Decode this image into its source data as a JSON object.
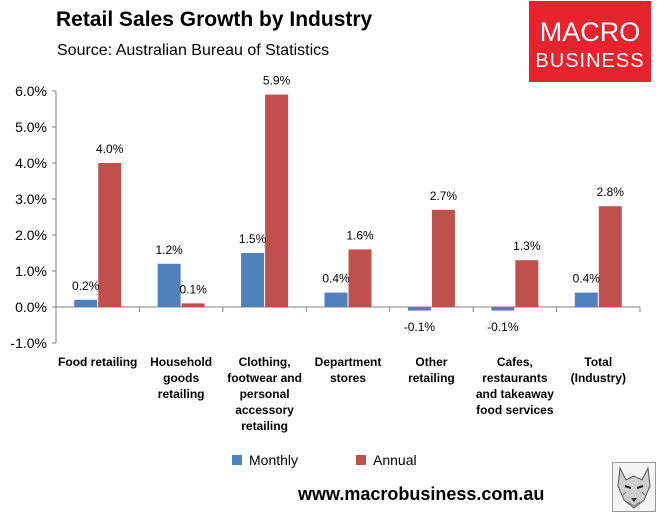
{
  "header": {
    "title": "Retail Sales Growth by Industry",
    "subtitle": "Source: Australian Bureau of Statistics"
  },
  "logo": {
    "line1": "MACRO",
    "line2": "BUSINESS",
    "bg_color": "#e8232e"
  },
  "footer": {
    "url": "www.macrobusiness.com.au"
  },
  "colors": {
    "monthly": "#4f81bd",
    "annual": "#c0504d"
  },
  "chart_data": {
    "type": "bar",
    "title": "Retail Sales Growth by Industry",
    "categories": [
      [
        "Food retailing"
      ],
      [
        "Household",
        "goods",
        "retailing"
      ],
      [
        "Clothing,",
        "footwear and",
        "personal",
        "accessory",
        "retailing"
      ],
      [
        "Department",
        "stores"
      ],
      [
        "Other",
        "retailing"
      ],
      [
        "Cafes,",
        "restaurants",
        "and takeaway",
        "food services"
      ],
      [
        "Total",
        "(Industry)"
      ]
    ],
    "series": [
      {
        "name": "Monthly",
        "values": [
          0.2,
          1.2,
          1.5,
          0.4,
          -0.1,
          -0.1,
          0.4
        ],
        "labels": [
          "0.2%",
          "1.2%",
          "1.5%",
          "0.4%",
          "-0.1%",
          "-0.1%",
          "0.4%"
        ]
      },
      {
        "name": "Annual",
        "values": [
          4.0,
          0.1,
          5.9,
          1.6,
          2.7,
          1.3,
          2.8
        ],
        "labels": [
          "4.0%",
          "0.1%",
          "5.9%",
          "1.6%",
          "2.7%",
          "1.3%",
          "2.8%"
        ]
      }
    ],
    "yticks": [
      "-1.0%",
      "0.0%",
      "1.0%",
      "2.0%",
      "3.0%",
      "4.0%",
      "5.0%",
      "6.0%"
    ],
    "ylim": [
      -1,
      6
    ],
    "legend": "bottom"
  }
}
